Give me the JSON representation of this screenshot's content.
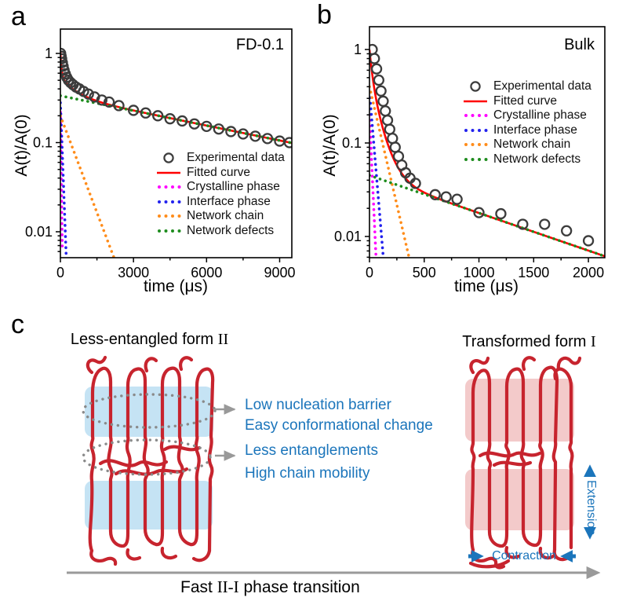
{
  "figure": {
    "panels": {
      "a_label": "a",
      "b_label": "b",
      "c_label": "c"
    }
  },
  "chart_data": [
    {
      "id": "panel_a",
      "type": "line",
      "title": "FD-0.1",
      "xlabel": "time (μs)",
      "ylabel": "A(t)/A(0)",
      "x_scale": "linear",
      "y_scale": "log",
      "xlim": [
        0,
        9500
      ],
      "ylim": [
        0.005,
        1.85
      ],
      "xticks": [
        0,
        3000,
        6000,
        9000
      ],
      "x_minor_step": 1500,
      "yticks": [
        {
          "v": 1,
          "label": "1"
        },
        {
          "v": 0.1,
          "label": "0.1"
        },
        {
          "v": 0.01,
          "label": "0.01"
        }
      ],
      "legend": [
        {
          "label": "Experimental data",
          "marker": "circle",
          "color": "#3c3c3c"
        },
        {
          "label": "Fitted curve",
          "marker": "line",
          "color": "#ff0000"
        },
        {
          "label": "Crystalline phase",
          "marker": "dots",
          "color": "#ff00ff"
        },
        {
          "label": "Interface phase",
          "marker": "dots",
          "color": "#2222ee"
        },
        {
          "label": "Network chain",
          "marker": "dots",
          "color": "#ff8c1a"
        },
        {
          "label": "Network defects",
          "marker": "dots",
          "color": "#1e8c1e"
        }
      ],
      "fitted_color": "#ff0000",
      "experimental_color": "#3c3c3c",
      "components": [
        {
          "name": "Crystalline phase",
          "color": "#ff00ff",
          "amplitude": 0.22,
          "tau_us": 22
        },
        {
          "name": "Interface phase",
          "color": "#2222ee",
          "amplitude": 0.28,
          "tau_us": 60
        },
        {
          "name": "Network chain",
          "color": "#ff8c1a",
          "amplitude": 0.2,
          "tau_us": 600
        },
        {
          "name": "Network defects",
          "color": "#1e8c1e",
          "amplitude": 0.335,
          "tau_us": 7800
        }
      ],
      "experimental": {
        "x": [
          10,
          30,
          50,
          80,
          110,
          150,
          200,
          260,
          330,
          420,
          520,
          640,
          780,
          950,
          1150,
          1400,
          1700,
          2000,
          2400,
          3000,
          3500,
          4000,
          4500,
          5000,
          5500,
          6000,
          6500,
          7000,
          7500,
          8000,
          8500,
          9000,
          9400
        ],
        "y": [
          1.0,
          0.93,
          0.87,
          0.79,
          0.72,
          0.65,
          0.59,
          0.54,
          0.5,
          0.47,
          0.445,
          0.42,
          0.4,
          0.375,
          0.35,
          0.325,
          0.3,
          0.285,
          0.26,
          0.23,
          0.215,
          0.2,
          0.185,
          0.175,
          0.162,
          0.152,
          0.142,
          0.133,
          0.125,
          0.118,
          0.111,
          0.104,
          0.1
        ]
      }
    },
    {
      "id": "panel_b",
      "type": "line",
      "title": "Bulk",
      "xlabel": "time (μs)",
      "ylabel": "A(t)/A(0)",
      "x_scale": "linear",
      "y_scale": "log",
      "xlim": [
        0,
        2150
      ],
      "ylim": [
        0.005,
        1.75
      ],
      "xticks": [
        0,
        500,
        1000,
        1500,
        2000
      ],
      "x_minor_step": 250,
      "yticks": [
        {
          "v": 1,
          "label": "1"
        },
        {
          "v": 0.1,
          "label": "0.1"
        },
        {
          "v": 0.01,
          "label": "0.01"
        }
      ],
      "legend": [
        {
          "label": "Experimental data",
          "marker": "circle",
          "color": "#3c3c3c"
        },
        {
          "label": "Fitted curve",
          "marker": "line",
          "color": "#ff0000"
        },
        {
          "label": "Crystalline phase",
          "marker": "dots",
          "color": "#ff00ff"
        },
        {
          "label": "Interface phase",
          "marker": "dots",
          "color": "#2222ee"
        },
        {
          "label": "Network chain",
          "marker": "dots",
          "color": "#ff8c1a"
        },
        {
          "label": "Network defects",
          "marker": "dots",
          "color": "#1e8c1e"
        }
      ],
      "fitted_color": "#ff0000",
      "experimental_color": "#3c3c3c",
      "components": [
        {
          "name": "Crystalline phase",
          "color": "#ff00ff",
          "amplitude": 0.2,
          "tau_us": 17
        },
        {
          "name": "Interface phase",
          "color": "#2222ee",
          "amplitude": 0.35,
          "tau_us": 31
        },
        {
          "name": "Network chain",
          "color": "#ff8c1a",
          "amplitude": 0.4,
          "tau_us": 86
        },
        {
          "name": "Network defects",
          "color": "#1e8c1e",
          "amplitude": 0.045,
          "tau_us": 1080
        }
      ],
      "experimental": {
        "x": [
          25,
          45,
          65,
          85,
          105,
          125,
          145,
          165,
          185,
          210,
          235,
          265,
          295,
          330,
          370,
          420,
          600,
          700,
          800,
          1000,
          1200,
          1400,
          1600,
          1800,
          2000
        ],
        "y": [
          1.0,
          0.8,
          0.62,
          0.47,
          0.36,
          0.28,
          0.22,
          0.175,
          0.14,
          0.112,
          0.09,
          0.072,
          0.058,
          0.048,
          0.042,
          0.037,
          0.028,
          0.0265,
          0.025,
          0.018,
          0.0175,
          0.0135,
          0.0135,
          0.0115,
          0.009
        ]
      }
    }
  ],
  "panel_c": {
    "form2": {
      "title_main": "Less-entangled form ",
      "title_numeral": "II"
    },
    "form1": {
      "title_main": "Transformed form ",
      "title_numeral": "I"
    },
    "annotations": [
      "Low nucleation barrier",
      "Easy conformational change",
      "Less entanglements",
      "High chain mobility"
    ],
    "extension_label": "Extension",
    "contraction_label": "Contraction",
    "caption": {
      "pre": "Fast ",
      "numeral": "II-I",
      "post": " phase transition"
    },
    "colors": {
      "chain_red": "#c7242e",
      "lamella_blue": "#c5e3f4",
      "lamella_pink": "#f3caca",
      "annotation_blue": "#1b75bb",
      "arrow_gray": "#999999",
      "ellipse_gray": "#8a8a8a"
    }
  }
}
